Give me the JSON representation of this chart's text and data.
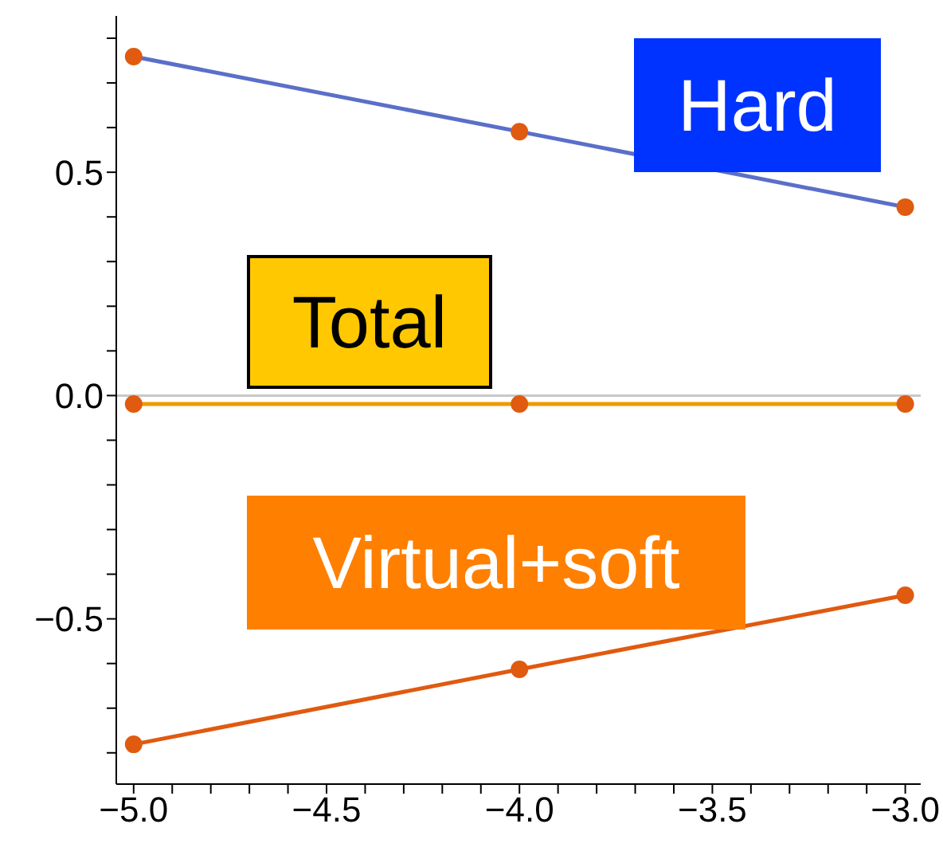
{
  "chart_data": {
    "type": "line",
    "x": [
      -5.0,
      -4.0,
      -3.0
    ],
    "series": [
      {
        "name": "Hard",
        "color": "#5a6fc8",
        "values": [
          0.759,
          0.591,
          0.422
        ]
      },
      {
        "name": "Total",
        "color": "#f09a00",
        "values": [
          -0.019,
          -0.019,
          -0.019
        ]
      },
      {
        "name": "Virtual+soft",
        "color": "#e05a10",
        "values": [
          -0.781,
          -0.613,
          -0.447
        ]
      }
    ],
    "xlim": [
      -5.045,
      -2.96
    ],
    "ylim": [
      -0.87,
      0.85
    ],
    "xticks": [
      {
        "value": -5.0,
        "label": "−5.0"
      },
      {
        "value": -4.9,
        "label": null
      },
      {
        "value": -4.8,
        "label": null
      },
      {
        "value": -4.7,
        "label": null
      },
      {
        "value": -4.6,
        "label": null
      },
      -4.5,
      {
        "value": -4.4,
        "label": null
      },
      {
        "value": -4.3,
        "label": null
      },
      {
        "value": -4.2,
        "label": null
      },
      {
        "value": -4.1,
        "label": null
      },
      {
        "value": -4.0,
        "label": "−4.0"
      },
      {
        "value": -3.9,
        "label": null
      },
      {
        "value": -3.8,
        "label": null
      },
      {
        "value": -3.7,
        "label": null
      },
      {
        "value": -3.6,
        "label": null
      },
      -3.5,
      {
        "value": -3.4,
        "label": null
      },
      {
        "value": -3.3,
        "label": null
      },
      {
        "value": -3.2,
        "label": null
      },
      {
        "value": -3.1,
        "label": null
      },
      {
        "value": -3.0,
        "label": "−3.0"
      }
    ],
    "yticks": [
      {
        "value": -0.8,
        "label": null
      },
      {
        "value": -0.7,
        "label": null
      },
      {
        "value": -0.6,
        "label": null
      },
      -0.5,
      {
        "value": -0.4,
        "label": null
      },
      {
        "value": -0.3,
        "label": null
      },
      {
        "value": -0.2,
        "label": null
      },
      {
        "value": -0.1,
        "label": null
      },
      {
        "value": 0,
        "label": "0.0"
      },
      {
        "value": 0.1,
        "label": null
      },
      {
        "value": 0.2,
        "label": null
      },
      {
        "value": 0.3,
        "label": null
      },
      {
        "value": 0.4,
        "label": null
      },
      0.5,
      {
        "value": 0.6,
        "label": null
      },
      {
        "value": 0.7,
        "label": null
      },
      {
        "value": 0.8,
        "label": null
      }
    ],
    "ref_lines": [
      {
        "axis": "y",
        "value": 0,
        "color": "#c8c8c8"
      }
    ],
    "marker": "circle",
    "line_style": "solid",
    "grid": false,
    "legend": false
  }
}
